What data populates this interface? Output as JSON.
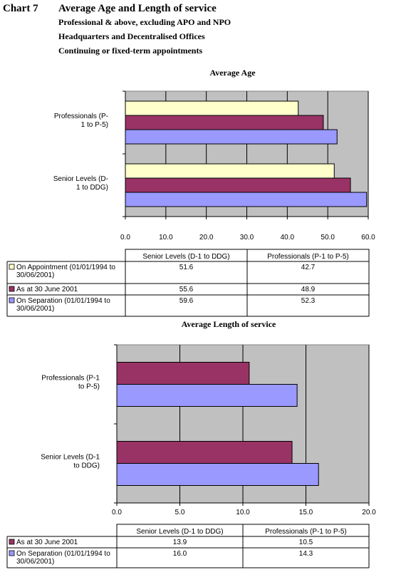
{
  "header": {
    "chart_no": "Chart 7",
    "title": "Average Age and Length of service",
    "subtitle1": "Professional & above, excluding APO and NPO",
    "subtitle2": "Headquarters and Decentralised Offices",
    "subtitle3": "Continuing or fixed-term appointments"
  },
  "colors": {
    "plot_bg": "#C0C0C0",
    "appointment": "#FFFFCC",
    "as_at": "#993366",
    "separation": "#9999FF"
  },
  "chart_data": [
    {
      "type": "bar",
      "orientation": "horizontal",
      "title": "Average Age",
      "categories": [
        "Professionals (P-1 to P-5)",
        "Senior Levels (D-1 to DDG)"
      ],
      "category_lines": [
        [
          "Professionals (P-",
          "1 to P-5)"
        ],
        [
          "Senior Levels (D-",
          "1 to DDG)"
        ]
      ],
      "xlim": [
        0,
        60
      ],
      "xticks": [
        "0.0",
        "10.0",
        "20.0",
        "30.0",
        "40.0",
        "50.0",
        "60.0"
      ],
      "grid": true,
      "table_headers": [
        "Senior Levels (D-1 to DDG)",
        "Professionals (P-1 to P-5)"
      ],
      "series": [
        {
          "name": "On Appointment  (01/01/1994 to 30/06/2001)",
          "legend_lines": [
            "On Appointment  (01/01/1994 to",
            "30/06/2001)"
          ],
          "color": "#FFFFCC",
          "values": [
            42.7,
            51.6
          ],
          "labels": [
            "51.6",
            "42.7"
          ]
        },
        {
          "name": "As at 30 June 2001",
          "legend_lines": [
            "As at 30 June 2001"
          ],
          "color": "#993366",
          "values": [
            48.9,
            55.6
          ],
          "labels": [
            "55.6",
            "48.9"
          ]
        },
        {
          "name": "On Separation (01/01/1994 to 30/06/2001)",
          "legend_lines": [
            "On Separation (01/01/1994 to",
            "30/06/2001)"
          ],
          "color": "#9999FF",
          "values": [
            52.3,
            59.6
          ],
          "labels": [
            "59.6",
            "52.3"
          ]
        }
      ]
    },
    {
      "type": "bar",
      "orientation": "horizontal",
      "title": "Average Length of service",
      "categories": [
        "Professionals (P-1 to P-5)",
        "Senior Levels (D-1 to DDG)"
      ],
      "category_lines": [
        [
          "Professionals (P-1",
          "to P-5)"
        ],
        [
          "Senior Levels (D-1",
          "to DDG)"
        ]
      ],
      "xlim": [
        0,
        20
      ],
      "xticks": [
        "0.0",
        "5.0",
        "10.0",
        "15.0",
        "20.0"
      ],
      "grid": true,
      "table_headers": [
        "Senior Levels (D-1 to DDG)",
        "Professionals (P-1 to P-5)"
      ],
      "series": [
        {
          "name": "As at 30 June 2001",
          "legend_lines": [
            "As at 30 June 2001"
          ],
          "color": "#993366",
          "values": [
            10.5,
            13.9
          ],
          "labels": [
            "13.9",
            "10.5"
          ]
        },
        {
          "name": "On Separation (01/01/1994 to 30/06/2001)",
          "legend_lines": [
            "On Separation (01/01/1994 to",
            "30/06/2001)"
          ],
          "color": "#9999FF",
          "values": [
            14.3,
            16.0
          ],
          "labels": [
            "16.0",
            "14.3"
          ]
        }
      ]
    }
  ]
}
